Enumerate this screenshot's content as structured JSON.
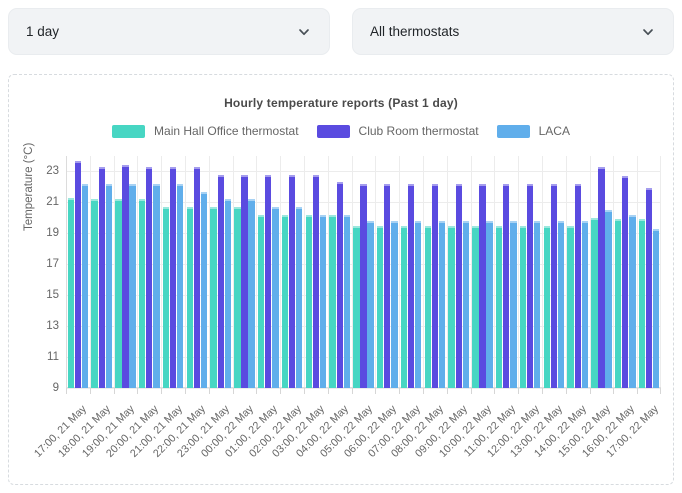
{
  "filters": {
    "period": {
      "value": "1 day"
    },
    "thermostats": {
      "value": "All thermostats"
    }
  },
  "chart_data": {
    "type": "bar",
    "title": "Hourly temperature reports (Past 1 day)",
    "ylabel": "Temperature (°C)",
    "ylim": [
      9,
      24
    ],
    "yticks": [
      9,
      11,
      13,
      15,
      17,
      19,
      21,
      23
    ],
    "grid": true,
    "legend_position": "top",
    "categories": [
      "17:00, 21 May",
      "18:00, 21 May",
      "19:00, 21 May",
      "20:00, 21 May",
      "21:00, 21 May",
      "22:00, 21 May",
      "23:00, 21 May",
      "00:00, 22 May",
      "01:00, 22 May",
      "02:00, 22 May",
      "03:00, 22 May",
      "04:00, 22 May",
      "05:00, 22 May",
      "06:00, 22 May",
      "07:00, 22 May",
      "08:00, 22 May",
      "09:00, 22 May",
      "10:00, 22 May",
      "11:00, 22 May",
      "12:00, 22 May",
      "13:00, 22 May",
      "14:00, 22 May",
      "15:00, 22 May",
      "16:00, 22 May",
      "17:00, 22 May"
    ],
    "series": [
      {
        "name": "Main Hall Office thermostat",
        "color": "#47d6c3",
        "values": [
          21.3,
          21.2,
          21.2,
          21.2,
          20.7,
          20.7,
          20.7,
          20.7,
          20.2,
          20.2,
          20.2,
          20.2,
          19.5,
          19.5,
          19.5,
          19.5,
          19.5,
          19.5,
          19.5,
          19.5,
          19.5,
          19.5,
          20.0,
          19.9,
          19.9
        ]
      },
      {
        "name": "Club Room thermostat",
        "color": "#5a4be0",
        "values": [
          23.7,
          23.3,
          23.4,
          23.3,
          23.3,
          23.3,
          22.8,
          22.8,
          22.8,
          22.8,
          22.8,
          22.3,
          22.2,
          22.2,
          22.2,
          22.2,
          22.2,
          22.2,
          22.2,
          22.2,
          22.2,
          22.2,
          23.3,
          22.7,
          21.9
        ]
      },
      {
        "name": "LACA",
        "color": "#60aeeb",
        "values": [
          22.2,
          22.2,
          22.2,
          22.2,
          22.2,
          21.7,
          21.2,
          21.2,
          20.7,
          20.7,
          20.2,
          20.2,
          19.8,
          19.8,
          19.8,
          19.8,
          19.8,
          19.8,
          19.8,
          19.8,
          19.8,
          19.8,
          20.5,
          20.2,
          19.3
        ]
      }
    ]
  },
  "icons": {
    "chevron_down": "chevron-down"
  }
}
